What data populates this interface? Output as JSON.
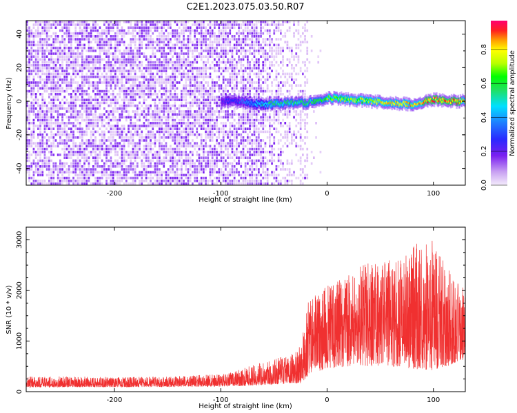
{
  "title": "C2E1.2023.075.03.50.R07",
  "colors": {
    "snr_line": "#f03030",
    "weak_signal": "#7a1ff0",
    "faint_signal": "#d9b8f5"
  },
  "chart_data": [
    {
      "type": "heatmap",
      "name": "spectrogram",
      "xlabel": "Height of straight line (km)",
      "ylabel": "Frequency (Hz)",
      "xlim": [
        -283,
        130
      ],
      "ylim": [
        -50,
        48
      ],
      "xticks": [
        -200,
        -100,
        0,
        100
      ],
      "xtick_labels": [
        "-200",
        "-100",
        "0",
        "100"
      ],
      "yticks": [
        -40,
        -20,
        0,
        20,
        40
      ],
      "ytick_labels": [
        "-40",
        "-20",
        "0",
        "20",
        "40"
      ],
      "colorbar": {
        "label": "Normalized spectral amplitude",
        "range": [
          0,
          0.97
        ],
        "ticks": [
          0.0,
          0.2,
          0.4,
          0.6,
          0.8
        ],
        "tick_labels": [
          "0.0",
          "0.2",
          "0.4",
          "0.6",
          "0.8"
        ],
        "colormap": "rainbow"
      },
      "noise_edge_km": -18,
      "ridge": {
        "x_km": [
          -100,
          -80,
          -60,
          -40,
          -20,
          0,
          20,
          40,
          60,
          80,
          100,
          120,
          130
        ],
        "freq_hz": [
          0,
          0,
          -2,
          -1,
          -1,
          2,
          1,
          0,
          -1,
          -2,
          1,
          0,
          0
        ],
        "peak_amplitude": [
          0.2,
          0.3,
          0.5,
          0.55,
          0.55,
          0.7,
          0.7,
          0.75,
          0.85,
          0.85,
          0.9,
          0.9,
          0.85
        ]
      }
    },
    {
      "type": "line",
      "name": "snr",
      "xlabel": "Height of straight line (km)",
      "ylabel": "SNR (10 * v/v)",
      "xlim": [
        -283,
        130
      ],
      "ylim": [
        0,
        3250
      ],
      "xticks": [
        -200,
        -100,
        0,
        100
      ],
      "xtick_labels": [
        "-200",
        "-100",
        "0",
        "100"
      ],
      "yticks": [
        0,
        1000,
        2000,
        3000
      ],
      "ytick_labels": [
        "0",
        "1000",
        "2000",
        "3000"
      ],
      "envelope": {
        "x_km": [
          -283,
          -250,
          -200,
          -150,
          -100,
          -80,
          -60,
          -40,
          -25,
          -18,
          -10,
          0,
          20,
          40,
          60,
          80,
          100,
          120,
          130
        ],
        "base": [
          80,
          90,
          90,
          95,
          100,
          110,
          130,
          150,
          170,
          300,
          400,
          450,
          500,
          500,
          500,
          450,
          400,
          550,
          650
        ],
        "peak": [
          300,
          300,
          290,
          300,
          350,
          450,
          600,
          700,
          900,
          1800,
          1950,
          2100,
          2300,
          2600,
          2600,
          2900,
          3000,
          2200,
          2100
        ]
      }
    }
  ]
}
